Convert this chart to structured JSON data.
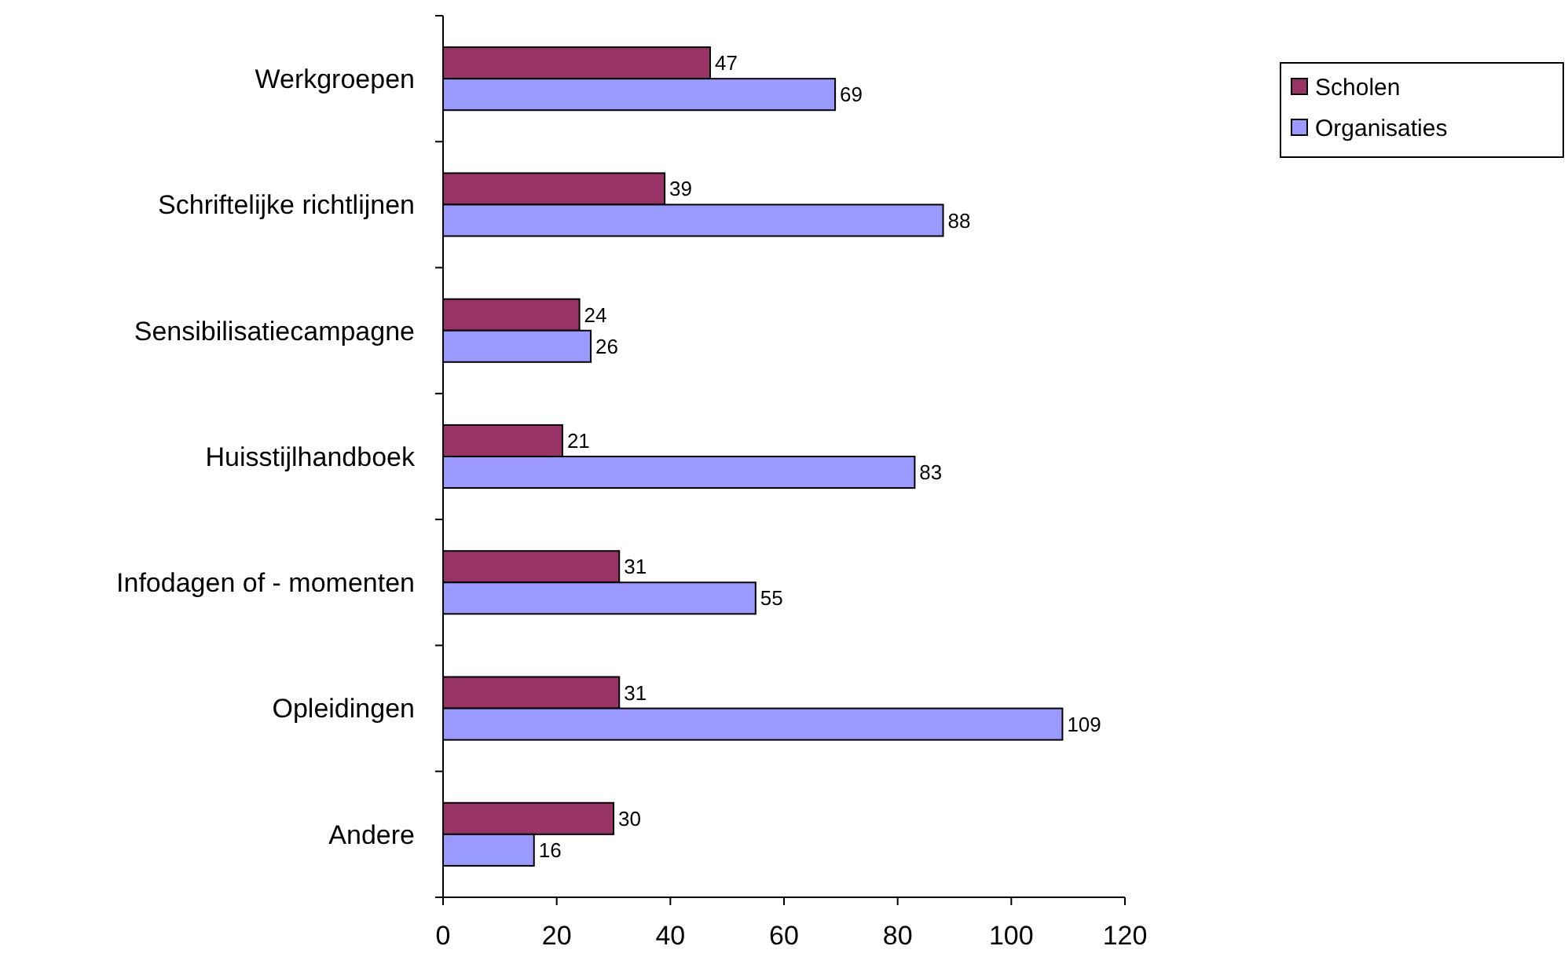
{
  "chart_data": {
    "type": "bar",
    "orientation": "horizontal",
    "categories": [
      "Werkgroepen",
      "Schriftelijke richtlijnen",
      "Sensibilisatiecampagne",
      "Huisstijlhandboek",
      "Infodagen of - momenten",
      "Opleidingen",
      "Andere"
    ],
    "series": [
      {
        "name": "Scholen",
        "color": "#993366",
        "values": [
          47,
          39,
          24,
          21,
          31,
          31,
          30
        ]
      },
      {
        "name": "Organisaties",
        "color": "#9999ff",
        "values": [
          69,
          88,
          26,
          83,
          55,
          109,
          16
        ]
      }
    ],
    "xlim": [
      0,
      120
    ],
    "xticks": [
      0,
      20,
      40,
      60,
      80,
      100,
      120
    ],
    "data_labels": true,
    "grid": false,
    "legend": "top right"
  }
}
